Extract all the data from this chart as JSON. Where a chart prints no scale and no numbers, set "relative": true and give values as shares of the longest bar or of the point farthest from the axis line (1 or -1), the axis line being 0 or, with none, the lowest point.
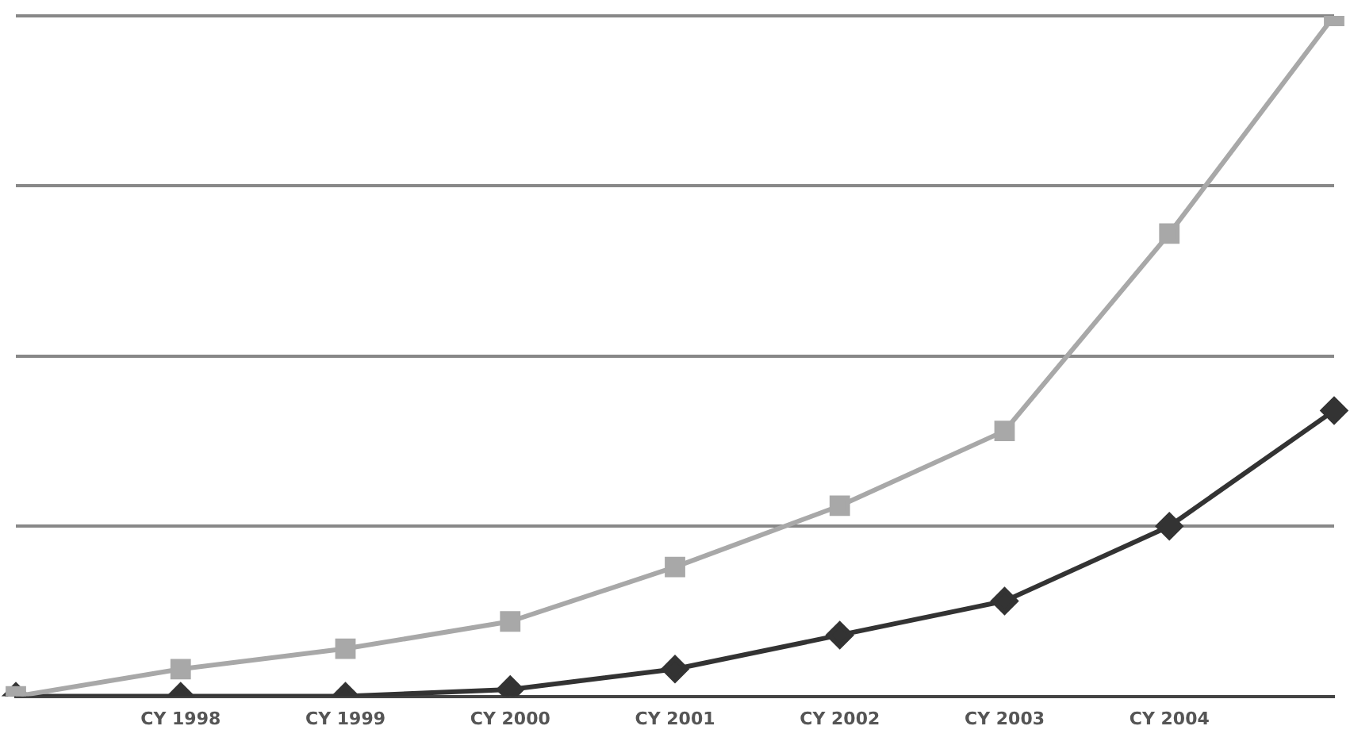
{
  "chart_data": {
    "type": "line",
    "relative": true,
    "grid": "y",
    "legend": false,
    "categories": [
      null,
      "CY 1998",
      "CY 1999",
      "CY 2000",
      "CY 2001",
      "CY 2002",
      "CY 2003",
      "CY 2004",
      null
    ],
    "series": [
      {
        "color": "#a8a8a8",
        "marker": "square",
        "values": [
          0,
          0.04,
          0.07,
          0.11,
          0.19,
          0.28,
          0.39,
          0.68,
          1
        ]
      },
      {
        "color": "#333333",
        "marker": "diamond",
        "values": [
          0,
          0,
          0,
          0.01,
          0.04,
          0.09,
          0.14,
          0.25,
          0.42
        ]
      }
    ]
  }
}
